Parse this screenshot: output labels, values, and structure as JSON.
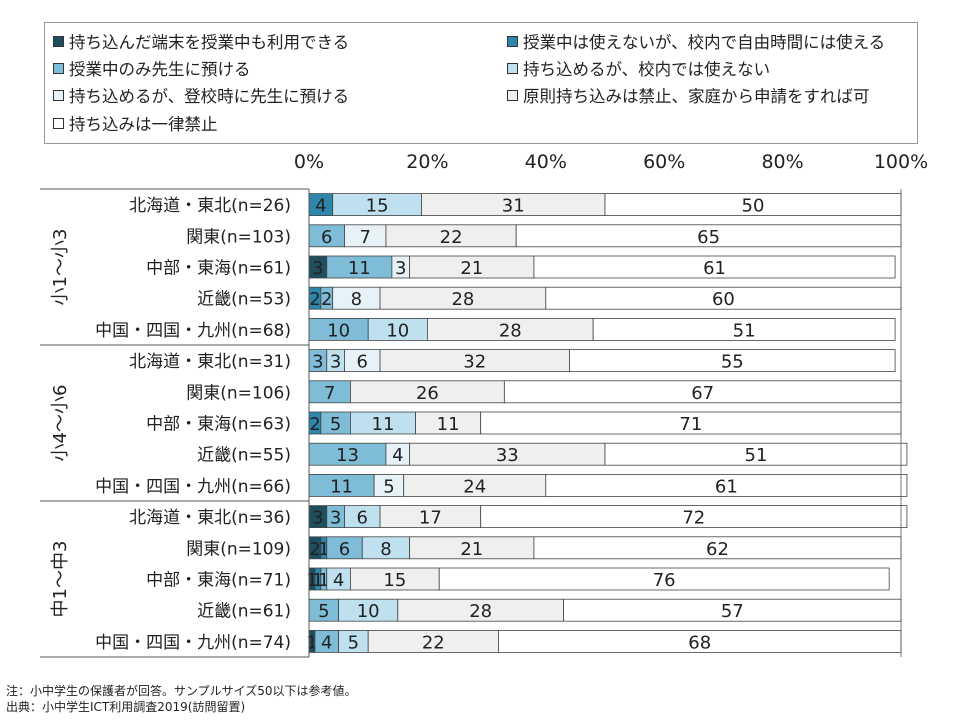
{
  "chart_data": {
    "type": "bar",
    "orientation": "horizontal",
    "stacked": "percent",
    "xlim": [
      0,
      100
    ],
    "x_ticks": [
      "0%",
      "20%",
      "40%",
      "60%",
      "80%",
      "100%"
    ],
    "grid": false,
    "legend_position": "top",
    "series": [
      {
        "name": "持ち込んだ端末を授業中も利用できる",
        "color": "#1f4e5f"
      },
      {
        "name": "授業中は使えないが、校内で自由時間には使える",
        "color": "#2e86ab"
      },
      {
        "name": "授業中のみ先生に預ける",
        "color": "#7fbcd8"
      },
      {
        "name": "持ち込めるが、校内では使えない",
        "color": "#bfe0ef"
      },
      {
        "name": "持ち込めるが、登校時に先生に預ける",
        "color": "#e6f2f8"
      },
      {
        "name": "原則持ち込みは禁止、家庭から申請をすれば可",
        "color": "#efefef"
      },
      {
        "name": "持ち込みは一律禁止",
        "color": "#ffffff"
      }
    ],
    "groups": [
      {
        "name": "小1～小3",
        "rows": [
          {
            "label": "北海道・東北(n=26)",
            "values": [
              0,
              4,
              0,
              15,
              0,
              31,
              50
            ]
          },
          {
            "label": "関東(n=103)",
            "values": [
              0,
              0,
              6,
              0,
              7,
              22,
              65
            ]
          },
          {
            "label": "中部・東海(n=61)",
            "values": [
              3,
              0,
              11,
              0,
              3,
              21,
              61
            ]
          },
          {
            "label": "近畿(n=53)",
            "values": [
              0,
              2,
              2,
              0,
              8,
              28,
              60
            ]
          },
          {
            "label": "中国・四国・九州(n=68)",
            "values": [
              0,
              0,
              10,
              10,
              0,
              28,
              51
            ]
          }
        ]
      },
      {
        "name": "小4～小6",
        "rows": [
          {
            "label": "北海道・東北(n=31)",
            "values": [
              0,
              0,
              3,
              3,
              6,
              32,
              55
            ]
          },
          {
            "label": "関東(n=106)",
            "values": [
              0,
              0,
              7,
              0,
              0,
              26,
              67
            ]
          },
          {
            "label": "中部・東海(n=63)",
            "values": [
              0,
              2,
              5,
              11,
              0,
              11,
              71
            ]
          },
          {
            "label": "近畿(n=55)",
            "values": [
              0,
              0,
              13,
              0,
              4,
              33,
              51
            ]
          },
          {
            "label": "中国・四国・九州(n=66)",
            "values": [
              0,
              0,
              11,
              0,
              5,
              24,
              61
            ]
          }
        ]
      },
      {
        "name": "中1～中3",
        "rows": [
          {
            "label": "北海道・東北(n=36)",
            "values": [
              3,
              0,
              3,
              6,
              0,
              17,
              72
            ]
          },
          {
            "label": "関東(n=109)",
            "values": [
              2,
              1,
              6,
              8,
              0,
              21,
              62
            ]
          },
          {
            "label": "中部・東海(n=71)",
            "values": [
              1,
              1,
              1,
              4,
              0,
              15,
              76
            ]
          },
          {
            "label": "近畿(n=61)",
            "values": [
              0,
              0,
              5,
              10,
              0,
              28,
              57
            ]
          },
          {
            "label": "中国・四国・九州(n=74)",
            "values": [
              1,
              0,
              4,
              5,
              0,
              22,
              68
            ]
          }
        ]
      }
    ]
  },
  "notes": [
    "注：小中学生の保護者が回答。サンプルサイズ50以下は参考値。",
    "出典：小中学生ICT利用調査2019(訪問留置)"
  ]
}
